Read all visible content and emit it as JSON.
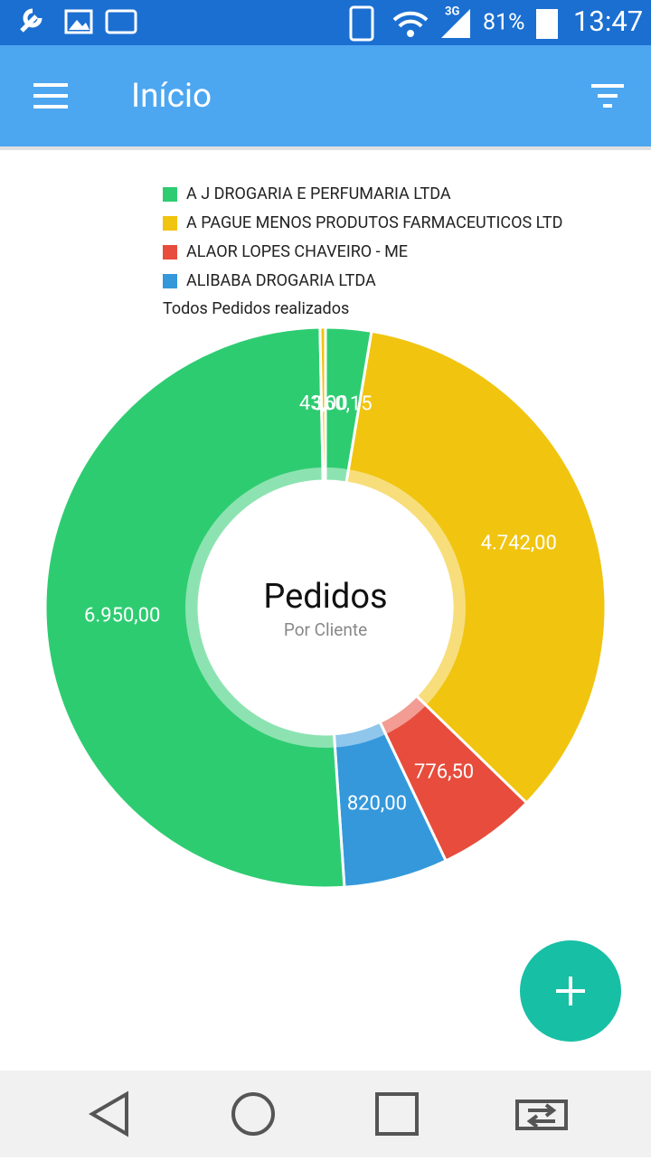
{
  "status_bar": {
    "network": "3G",
    "battery": "81%",
    "time": "13:47"
  },
  "app_bar": {
    "title": "Início"
  },
  "chart_data": {
    "type": "pie",
    "legend": [
      {
        "label": "A J DROGARIA E PERFUMARIA LTDA",
        "color": "#2ecc71"
      },
      {
        "label": "A PAGUE MENOS PRODUTOS FARMACEUTICOS LTD",
        "color": "#f1c40f"
      },
      {
        "label": "ALAOR LOPES CHAVEIRO - ME",
        "color": "#e74c3c"
      },
      {
        "label": "ALIBABA DROGARIA LTDA",
        "color": "#3498db"
      }
    ],
    "description": "Todos Pedidos realizados",
    "values": [
      360.15,
      4742,
      776.5,
      820,
      6950,
      43
    ],
    "value_labels": [
      "360,15",
      "4.742,00",
      "776,50",
      "820,00",
      "6.950,00",
      "43,00"
    ],
    "colors": [
      "#2ecc71",
      "#f1c40f",
      "#e74c3c",
      "#3498db",
      "#2ecc71",
      "#f1c40f"
    ],
    "center_title": "Pedidos",
    "center_subtitle": "Por Cliente"
  }
}
